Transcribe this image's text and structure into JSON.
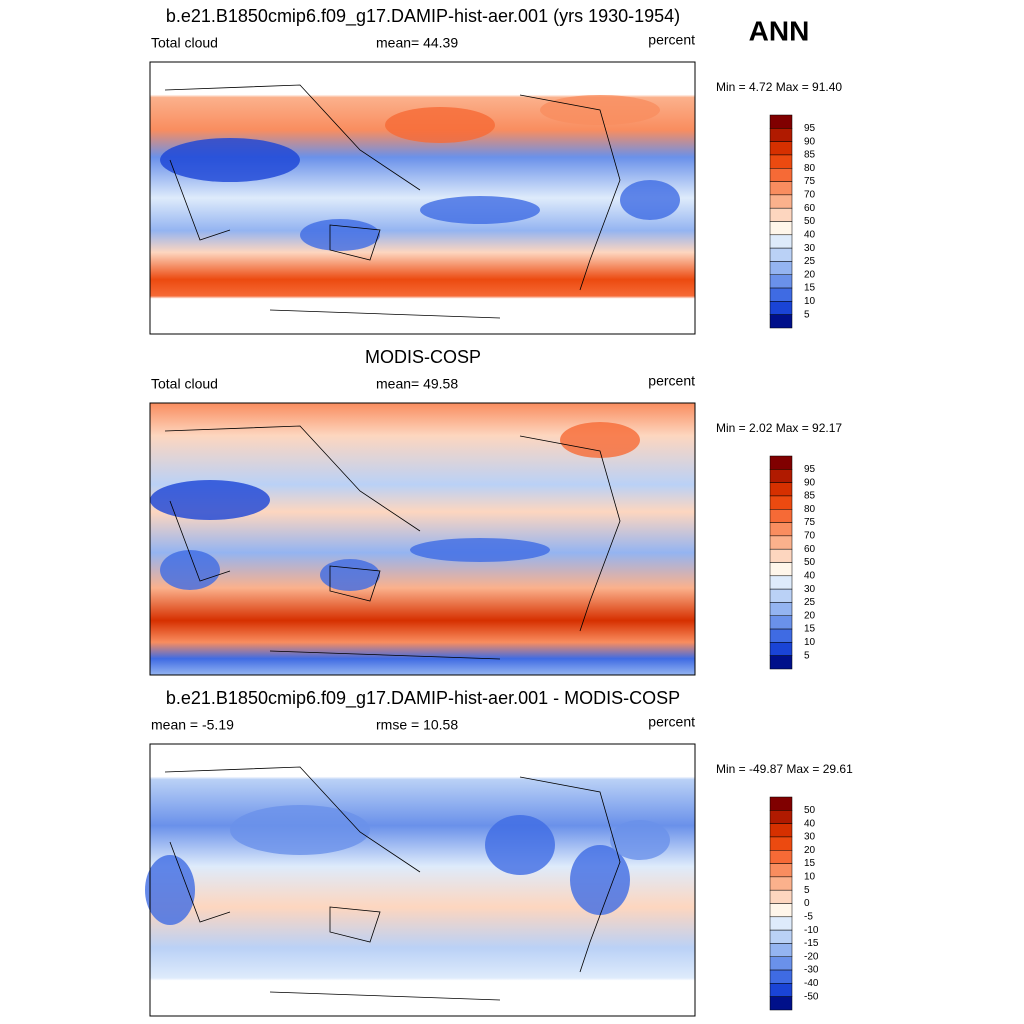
{
  "header": {
    "season": "ANN"
  },
  "panels": [
    {
      "title": "b.e21.B1850cmip6.f09_g17.DAMIP-hist-aer.001 (yrs 1930-1954)",
      "left": "Total cloud",
      "center": "mean=  44.39",
      "right": "percent",
      "range": "Min =   4.72 Max =  91.40",
      "colorbar": [
        "95",
        "90",
        "85",
        "80",
        "75",
        "70",
        "60",
        "50",
        "40",
        "30",
        "25",
        "20",
        "15",
        "10",
        "5"
      ]
    },
    {
      "title": "MODIS-COSP",
      "left": "Total cloud",
      "center": "mean=  49.58",
      "right": "percent",
      "range": "Min =   2.02 Max =  92.17",
      "colorbar": [
        "95",
        "90",
        "85",
        "80",
        "75",
        "70",
        "60",
        "50",
        "40",
        "30",
        "25",
        "20",
        "15",
        "10",
        "5"
      ]
    },
    {
      "title": "b.e21.B1850cmip6.f09_g17.DAMIP-hist-aer.001 - MODIS-COSP",
      "left": "mean =  -5.19",
      "center": "rmse =  10.58",
      "right": "percent",
      "range": "Min = -49.87 Max =  29.61",
      "colorbar": [
        "50",
        "40",
        "30",
        "20",
        "15",
        "10",
        "5",
        "0",
        "-5",
        "-10",
        "-15",
        "-20",
        "-30",
        "-40",
        "-50"
      ]
    }
  ]
}
